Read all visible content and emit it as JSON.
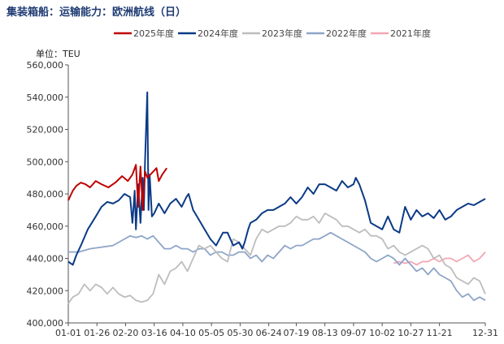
{
  "title": "集装箱船：运输能力：欧洲航线（日）",
  "chart_data": {
    "type": "line",
    "unit_label": "单位：TEU",
    "xlabel": "",
    "ylabel": "",
    "ylim": [
      400000,
      560000
    ],
    "y_ticks": [
      400000,
      420000,
      440000,
      460000,
      480000,
      500000,
      520000,
      540000,
      560000
    ],
    "y_tick_labels": [
      "400,000",
      "420,000",
      "440,000",
      "460,000",
      "480,000",
      "500,000",
      "520,000",
      "540,000",
      "560,000"
    ],
    "x_domain": [
      1,
      365
    ],
    "x_ticks": [
      1,
      26,
      51,
      76,
      101,
      126,
      151,
      176,
      200,
      225,
      250,
      275,
      300,
      325,
      365
    ],
    "x_tick_labels": [
      "01-01",
      "01-26",
      "02-20",
      "03-16",
      "04-10",
      "05-05",
      "05-30",
      "06-24",
      "07-19",
      "08-13",
      "09-07",
      "10-02",
      "10-27",
      "11-21",
      "12-31"
    ],
    "grid": false,
    "legend_position": "top",
    "colors": {
      "2025年度": "#c00000",
      "2024年度": "#0b3a86",
      "2023年度": "#bdbdbd",
      "2022年度": "#8ea5c8",
      "2021年度": "#f4a6b4"
    },
    "series": [
      {
        "name": "2025年度",
        "color": "#c00000",
        "x": [
          1,
          5,
          8,
          12,
          16,
          20,
          25,
          30,
          36,
          42,
          48,
          53,
          57,
          60,
          62,
          64,
          66,
          68,
          70,
          74,
          78,
          80,
          83,
          87
        ],
        "y": [
          476000,
          482000,
          485000,
          487000,
          486000,
          484000,
          488000,
          486000,
          484000,
          487000,
          491000,
          488000,
          492000,
          498000,
          472000,
          497000,
          470000,
          494000,
          490000,
          493000,
          496000,
          488000,
          492000,
          496000
        ]
      },
      {
        "name": "2024年度",
        "color": "#0b3a86",
        "x": [
          1,
          5,
          8,
          12,
          18,
          25,
          30,
          35,
          40,
          45,
          50,
          55,
          57,
          59,
          60,
          62,
          64,
          66,
          67,
          68,
          70,
          71,
          72,
          74,
          76,
          80,
          85,
          90,
          95,
          100,
          104,
          106,
          110,
          115,
          120,
          125,
          130,
          136,
          140,
          145,
          150,
          153,
          155,
          158,
          160,
          165,
          170,
          175,
          180,
          185,
          190,
          195,
          200,
          205,
          210,
          215,
          220,
          225,
          230,
          235,
          240,
          245,
          250,
          252,
          255,
          260,
          265,
          270,
          275,
          280,
          285,
          290,
          295,
          300,
          305,
          310,
          315,
          320,
          325,
          330,
          335,
          340,
          345,
          350,
          355,
          360,
          365
        ],
        "y": [
          438000,
          436000,
          442000,
          448000,
          458000,
          466000,
          472000,
          475000,
          474000,
          476000,
          480000,
          478000,
          462000,
          482000,
          458000,
          486000,
          462000,
          490000,
          470000,
          500000,
          543000,
          470000,
          492000,
          466000,
          468000,
          474000,
          468000,
          474000,
          477000,
          472000,
          478000,
          480000,
          470000,
          464000,
          458000,
          452000,
          448000,
          456000,
          456000,
          448000,
          450000,
          446000,
          450000,
          458000,
          462000,
          464000,
          468000,
          470000,
          470000,
          472000,
          474000,
          478000,
          474000,
          478000,
          484000,
          480000,
          486000,
          486000,
          484000,
          482000,
          488000,
          484000,
          486000,
          490000,
          486000,
          476000,
          462000,
          460000,
          458000,
          466000,
          458000,
          456000,
          472000,
          464000,
          470000,
          466000,
          468000,
          465000,
          470000,
          464000,
          466000,
          470000,
          472000,
          474000,
          473000,
          475000,
          477000
        ]
      },
      {
        "name": "2023年度",
        "color": "#bdbdbd",
        "x": [
          1,
          5,
          10,
          15,
          20,
          25,
          30,
          35,
          40,
          45,
          50,
          55,
          60,
          65,
          70,
          75,
          80,
          85,
          90,
          95,
          100,
          105,
          110,
          115,
          120,
          125,
          130,
          135,
          140,
          145,
          150,
          155,
          160,
          165,
          170,
          175,
          180,
          185,
          190,
          195,
          200,
          205,
          210,
          215,
          220,
          225,
          230,
          235,
          240,
          245,
          250,
          255,
          260,
          265,
          270,
          275,
          280,
          285,
          290,
          295,
          300,
          305,
          310,
          315,
          320,
          325,
          330,
          335,
          340,
          345,
          350,
          355,
          360,
          365
        ],
        "y": [
          412000,
          416000,
          418000,
          424000,
          420000,
          424000,
          422000,
          418000,
          422000,
          418000,
          416000,
          417000,
          414000,
          413000,
          414000,
          418000,
          430000,
          424000,
          432000,
          434000,
          438000,
          432000,
          440000,
          448000,
          446000,
          448000,
          444000,
          440000,
          438000,
          452000,
          450000,
          446000,
          442000,
          452000,
          458000,
          456000,
          458000,
          460000,
          460000,
          462000,
          466000,
          464000,
          464000,
          466000,
          462000,
          468000,
          466000,
          464000,
          460000,
          460000,
          458000,
          456000,
          458000,
          454000,
          454000,
          452000,
          446000,
          448000,
          444000,
          442000,
          444000,
          446000,
          448000,
          446000,
          440000,
          442000,
          436000,
          434000,
          428000,
          426000,
          424000,
          428000,
          426000,
          418000
        ]
      },
      {
        "name": "2022年度",
        "color": "#8ea5c8",
        "x": [
          1,
          10,
          20,
          30,
          40,
          50,
          55,
          60,
          65,
          70,
          75,
          80,
          85,
          90,
          95,
          100,
          105,
          110,
          115,
          120,
          125,
          130,
          135,
          140,
          145,
          150,
          155,
          160,
          165,
          170,
          175,
          180,
          185,
          190,
          195,
          200,
          205,
          210,
          215,
          220,
          225,
          230,
          235,
          240,
          245,
          250,
          255,
          260,
          265,
          270,
          275,
          280,
          285,
          290,
          295,
          300,
          305,
          310,
          315,
          320,
          325,
          330,
          335,
          340,
          345,
          350,
          355,
          360,
          365
        ],
        "y": [
          444000,
          444000,
          446000,
          447000,
          448000,
          452000,
          454000,
          453000,
          454000,
          452000,
          454000,
          450000,
          446000,
          446000,
          448000,
          446000,
          446000,
          444000,
          446000,
          446000,
          442000,
          444000,
          444000,
          442000,
          442000,
          444000,
          444000,
          440000,
          442000,
          438000,
          442000,
          440000,
          444000,
          448000,
          446000,
          448000,
          448000,
          450000,
          452000,
          452000,
          454000,
          456000,
          454000,
          452000,
          450000,
          448000,
          446000,
          444000,
          440000,
          438000,
          440000,
          442000,
          440000,
          436000,
          440000,
          436000,
          432000,
          434000,
          430000,
          434000,
          430000,
          428000,
          426000,
          420000,
          416000,
          418000,
          414000,
          416000,
          414000
        ]
      },
      {
        "name": "2021年度",
        "color": "#f4a6b4",
        "x": [
          285,
          290,
          295,
          300,
          305,
          310,
          315,
          320,
          325,
          330,
          335,
          340,
          345,
          350,
          355,
          360,
          365
        ],
        "y": [
          437000,
          438000,
          437000,
          438000,
          436000,
          438000,
          438000,
          440000,
          438000,
          440000,
          440000,
          438000,
          440000,
          442000,
          438000,
          440000,
          444000
        ]
      }
    ]
  }
}
